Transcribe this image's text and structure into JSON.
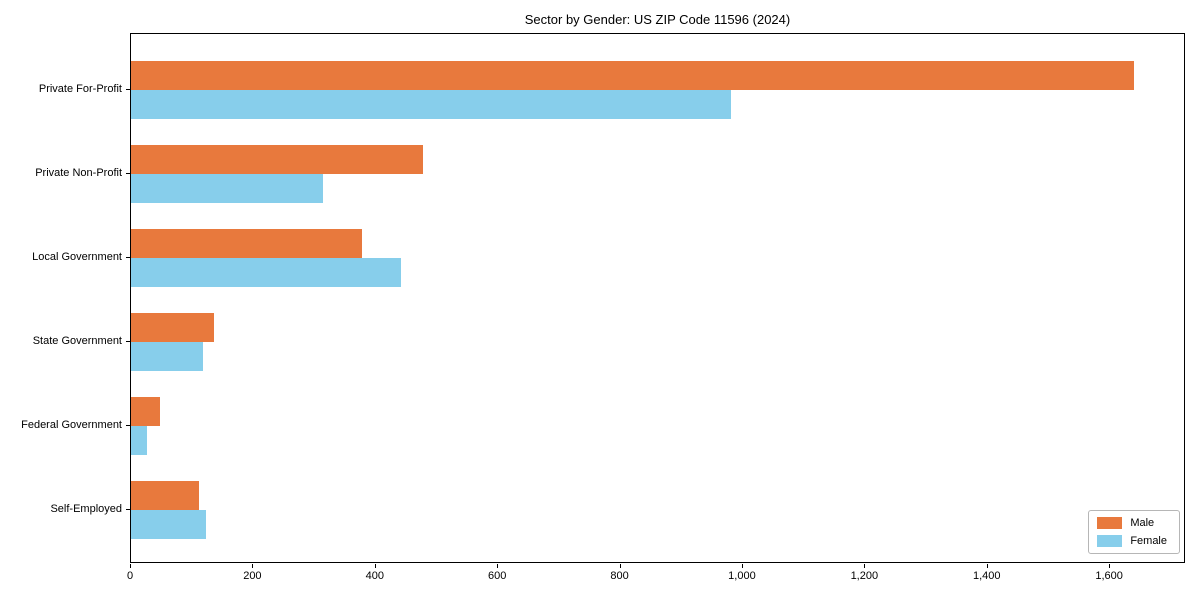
{
  "chart_data": {
    "type": "bar",
    "orientation": "horizontal",
    "title": "Sector by Gender: US ZIP Code 11596 (2024)",
    "categories": [
      "Private For-Profit",
      "Private Non-Profit",
      "Local Government",
      "State Government",
      "Federal Government",
      "Self-Employed"
    ],
    "series": [
      {
        "name": "Male",
        "color": "#e8793d",
        "values": [
          1642,
          478,
          378,
          136,
          48,
          112
        ]
      },
      {
        "name": "Female",
        "color": "#87ceeb",
        "values": [
          983,
          314,
          442,
          118,
          26,
          122
        ]
      }
    ],
    "xlim": [
      0,
      1724
    ],
    "x_ticks": [
      0,
      200,
      400,
      600,
      800,
      1000,
      1200,
      1400,
      1600
    ],
    "x_tick_labels": [
      "0",
      "200",
      "400",
      "600",
      "800",
      "1,000",
      "1,200",
      "1,400",
      "1,600"
    ],
    "grid": false,
    "legend_position": "lower right",
    "axis_color": "#000000",
    "background_color": "#ffffff"
  }
}
